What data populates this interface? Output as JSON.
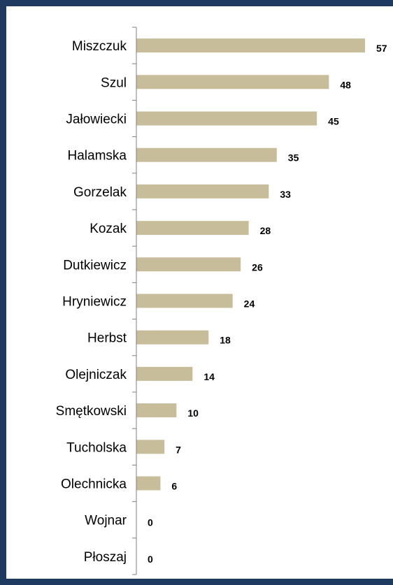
{
  "chart_data": {
    "type": "bar",
    "orientation": "horizontal",
    "categories": [
      "Miszczuk",
      "Szul",
      "Jałowiecki",
      "Halamska",
      "Gorzelak",
      "Kozak",
      "Dutkiewicz",
      "Hryniewicz",
      "Herbst",
      "Olejniczak",
      "Smętkowski",
      "Tucholska",
      "Olechnicka",
      "Wojnar",
      "Płoszaj"
    ],
    "values": [
      57,
      48,
      45,
      35,
      33,
      28,
      26,
      24,
      18,
      14,
      10,
      7,
      6,
      0,
      0
    ],
    "data_labels": [
      "57",
      "48",
      "45",
      "35",
      "33",
      "28",
      "26",
      "24",
      "18",
      "14",
      "10",
      "7",
      "6",
      "0",
      "0"
    ],
    "xlim": [
      0,
      57
    ],
    "grid": false,
    "legend": "none",
    "colors": {
      "bar": "#c8bd9a",
      "axis": "#7f7f7f",
      "background": "#ffffff",
      "border": "#1f3a60"
    }
  }
}
